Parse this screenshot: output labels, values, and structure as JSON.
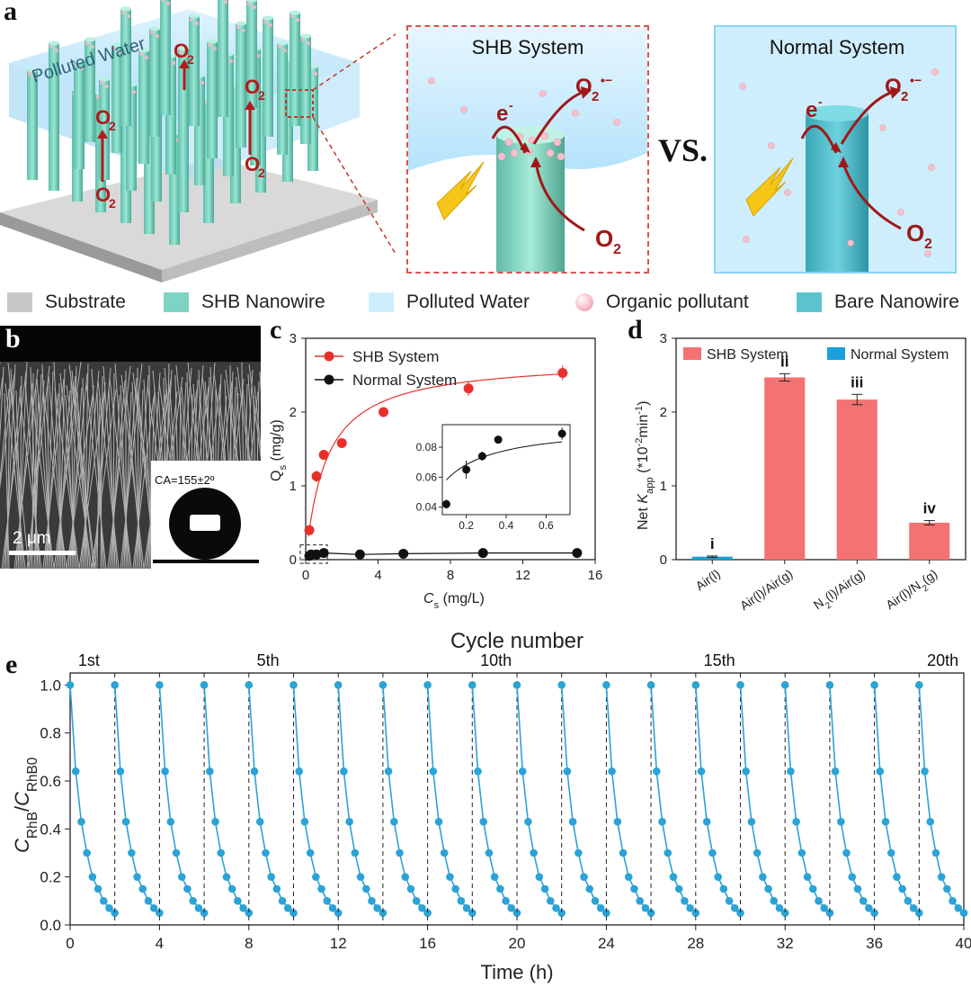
{
  "panel_a": {
    "letter": "a",
    "polluted_water_label": "Polluted Water",
    "o2_label": "O",
    "o2_sub": "2",
    "shb_title": "SHB System",
    "normal_title": "Normal System",
    "vs": "VS.",
    "electron_label": "e",
    "electron_sup": "-",
    "superoxide_label": "O",
    "superoxide_sub": "2",
    "superoxide_sup": "•−",
    "legend": [
      {
        "label": "Substrate",
        "color": "#c8c8c8",
        "kind": "square"
      },
      {
        "label": "SHB Nanowire",
        "color": "#7fd4c1",
        "kind": "square"
      },
      {
        "label": "Polluted Water",
        "color": "#cdeeff",
        "kind": "square"
      },
      {
        "label": "Organic pollutant",
        "color": "#f3b7c3",
        "kind": "dot"
      },
      {
        "label": "Bare Nanowire",
        "color": "#5bc4cf",
        "kind": "square"
      }
    ]
  },
  "panel_b": {
    "letter": "b",
    "contact_angle": "CA=155±2º",
    "scale_bar": "2 μm"
  },
  "panel_c": {
    "letter": "c"
  },
  "panel_d": {
    "letter": "d"
  },
  "panel_e": {
    "letter": "e",
    "top_title": "Cycle number"
  },
  "chart_data": [
    {
      "id": "c",
      "type": "scatter",
      "xlabel": "Cs (mg/L)",
      "xlabel_main": "C",
      "xlabel_sub": "s",
      "xlabel_unit": " (mg/L)",
      "ylabel": "Qs (mg/g)",
      "ylabel_main": "Q",
      "ylabel_sub": "s",
      "ylabel_unit": " (mg/g)",
      "xlim": [
        0,
        16
      ],
      "ylim": [
        0,
        3
      ],
      "xticks": [
        "0",
        "4",
        "8",
        "12",
        "16"
      ],
      "yticks": [
        "0",
        "1",
        "2",
        "3"
      ],
      "legend_position": "top-left",
      "series": [
        {
          "name": "SHB System",
          "color": "#e8302a",
          "x": [
            0.2,
            0.6,
            1.0,
            2.0,
            4.3,
            9.0,
            14.2
          ],
          "y": [
            0.4,
            1.13,
            1.42,
            1.58,
            2.0,
            2.32,
            2.53
          ],
          "err": [
            0.04,
            0.08,
            0.0,
            0.0,
            0.0,
            0.1,
            0.1
          ]
        },
        {
          "name": "Normal System",
          "color": "#111111",
          "x": [
            0.2,
            0.3,
            0.6,
            1.0,
            3.0,
            5.4,
            9.8,
            15.0
          ],
          "y": [
            0.05,
            0.07,
            0.07,
            0.09,
            0.07,
            0.08,
            0.09,
            0.09
          ],
          "err": [
            0,
            0,
            0,
            0,
            0,
            0,
            0,
            0
          ]
        }
      ],
      "inset": {
        "xlim": [
          0.08,
          0.72
        ],
        "ylim": [
          0.035,
          0.095
        ],
        "xticks": [
          "0.2",
          "0.4",
          "0.6"
        ],
        "yticks": [
          "0.04",
          "0.06",
          "0.08"
        ],
        "x": [
          0.1,
          0.2,
          0.28,
          0.36,
          0.68
        ],
        "y": [
          0.042,
          0.065,
          0.074,
          0.085,
          0.089
        ],
        "err": [
          0.003,
          0.006,
          0.003,
          0.002,
          0.004
        ]
      }
    },
    {
      "id": "d",
      "type": "bar",
      "ylabel": "Net Kapp (*10^-2 min^-1)",
      "ylim": [
        0,
        3
      ],
      "yticks": [
        "0",
        "1",
        "2",
        "3"
      ],
      "categories": [
        "Air(l)",
        "Air(l)/Air(g)",
        "N2(l)/Air(g)",
        "Air(l)/N2(g)"
      ],
      "series": [
        {
          "name": "SHB System",
          "color": "#f47271"
        },
        {
          "name": "Normal System",
          "color": "#1aa0d8"
        }
      ],
      "bars": [
        {
          "category": "Air(l)",
          "series": "Normal System",
          "value": 0.04,
          "err": 0.01,
          "label": "i"
        },
        {
          "category": "Air(l)/Air(g)",
          "series": "SHB System",
          "value": 2.47,
          "err": 0.05,
          "label": "ii"
        },
        {
          "category": "N2(l)/Air(g)",
          "series": "SHB System",
          "value": 2.17,
          "err": 0.07,
          "label": "iii"
        },
        {
          "category": "Air(l)/N2(g)",
          "series": "SHB System",
          "value": 0.5,
          "err": 0.03,
          "label": "iv"
        }
      ],
      "legend_position": "top"
    },
    {
      "id": "e",
      "type": "line",
      "xlabel": "Time (h)",
      "ylabel": "CRhB/CRhB0",
      "ylabel_main": "C",
      "ylabel_sub": "RhB",
      "ylabel_sep": "/",
      "ylabel_main2": "C",
      "ylabel_sub2": "RhB0",
      "xlim": [
        0,
        40
      ],
      "ylim": [
        0,
        1.05
      ],
      "xticks": [
        "0",
        "4",
        "8",
        "12",
        "16",
        "20",
        "24",
        "28",
        "32",
        "36",
        "40"
      ],
      "yticks": [
        "0.0",
        "0.2",
        "0.4",
        "0.6",
        "0.8",
        "1.0"
      ],
      "color": "#2aa3d6",
      "cycles": 20,
      "cycle_duration_h": 2,
      "cycle_labels": [
        {
          "cycle": 1,
          "text": "1st"
        },
        {
          "cycle": 5,
          "text": "5th"
        },
        {
          "cycle": 10,
          "text": "10th"
        },
        {
          "cycle": 15,
          "text": "15th"
        },
        {
          "cycle": 20,
          "text": "20th"
        }
      ],
      "cycle_time_offsets_h": [
        0,
        0.25,
        0.5,
        0.75,
        1.0,
        1.25,
        1.5,
        1.75,
        2.0
      ],
      "cycle_values": [
        1.0,
        0.64,
        0.43,
        0.3,
        0.2,
        0.15,
        0.1,
        0.07,
        0.05
      ]
    }
  ]
}
